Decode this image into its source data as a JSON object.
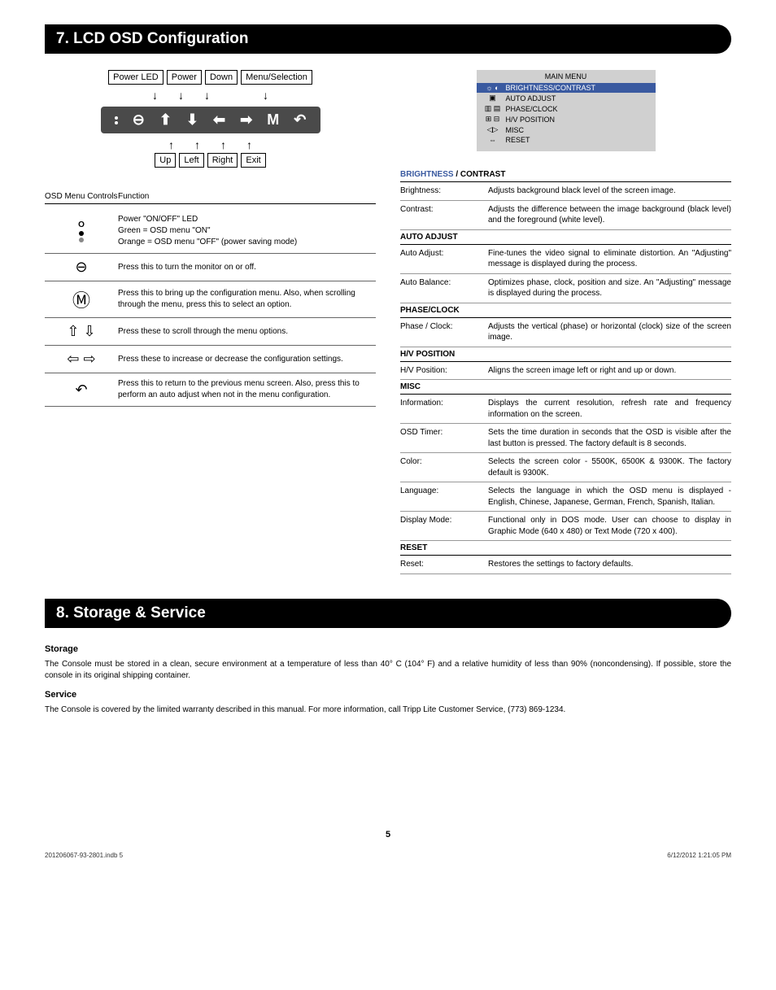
{
  "section7": {
    "title": "7. LCD OSD Configuration",
    "diagram": {
      "top_labels": [
        "Power LED",
        "Power",
        "Down",
        "Menu/Selection"
      ],
      "bottom_labels": [
        "Up",
        "Left",
        "Right",
        "Exit"
      ]
    },
    "osd_preview": {
      "title": "MAIN MENU",
      "items": [
        {
          "label": "BRIGHTNESS/CONTRAST",
          "selected": true
        },
        {
          "label": "AUTO ADJUST",
          "selected": false
        },
        {
          "label": "PHASE/CLOCK",
          "selected": false
        },
        {
          "label": "H/V POSITION",
          "selected": false
        },
        {
          "label": "MISC",
          "selected": false
        },
        {
          "label": "RESET",
          "selected": false
        }
      ]
    },
    "controls_table": {
      "head1": "OSD Menu Controls",
      "head2": "Function",
      "rows": [
        {
          "func": "Power \"ON/OFF\" LED\nGreen = OSD menu \"ON\"\nOrange = OSD menu \"OFF\" (power saving mode)"
        },
        {
          "func": "Press this to turn the monitor on or off."
        },
        {
          "func": "Press this to bring up the configuration menu. Also, when scrolling through the menu, press this to select an option."
        },
        {
          "func": "Press these to scroll through the menu options."
        },
        {
          "func": "Press these to increase or decrease the configuration settings."
        },
        {
          "func": "Press this to return to the previous menu screen. Also, press this to perform an auto adjust when not in the menu configuration."
        }
      ]
    },
    "settings": {
      "groups": [
        {
          "head_html": true,
          "head_b": "BRIGHTNESS",
          "head_sep": " / ",
          "head_r": "CONTRAST",
          "rows": [
            {
              "k": "Brightness:",
              "v": "Adjusts background black level of the screen image."
            },
            {
              "k": "Contrast:",
              "v": "Adjusts the difference between the image background (black level) and the foreground (white level)."
            }
          ]
        },
        {
          "head": "AUTO ADJUST",
          "rows": [
            {
              "k": "Auto Adjust:",
              "v": "Fine-tunes the video signal to eliminate distortion. An \"Adjusting\" message is displayed during the process."
            },
            {
              "k": "Auto Balance:",
              "v": "Optimizes phase, clock, position and size. An \"Adjusting\" message is displayed during the process."
            }
          ]
        },
        {
          "head": "PHASE/CLOCK",
          "rows": [
            {
              "k": "Phase / Clock:",
              "v": "Adjusts the vertical (phase) or horizontal (clock) size of the screen image."
            }
          ]
        },
        {
          "head": "H/V POSITION",
          "rows": [
            {
              "k": "H/V Position:",
              "v": "Aligns the screen image left or right and up or down."
            }
          ]
        },
        {
          "head": "MISC",
          "rows": [
            {
              "k": "Information:",
              "v": "Displays the current resolution, refresh rate and frequency information on the screen."
            },
            {
              "k": "OSD Timer:",
              "v": "Sets the time duration in seconds that the OSD is visible after the last button is pressed. The factory default is 8 seconds."
            },
            {
              "k": "Color:",
              "v": "Selects the screen color - 5500K, 6500K & 9300K. The factory default is 9300K."
            },
            {
              "k": "Language:",
              "v": "Selects the language in which the OSD menu is displayed - English, Chinese, Japanese, German, French, Spanish, Italian."
            },
            {
              "k": "Display Mode:",
              "v": "Functional only in DOS mode. User can choose to display in Graphic Mode (640 x 480) or Text Mode (720 x 400)."
            }
          ]
        },
        {
          "head": "RESET",
          "rows": [
            {
              "k": "Reset:",
              "v": "Restores the settings to factory defaults."
            }
          ]
        }
      ]
    }
  },
  "section8": {
    "title": "8. Storage & Service",
    "storage_h": "Storage",
    "storage_p": "The Console must be stored in a clean, secure environment at a temperature of less than 40° C (104° F) and a relative humidity of less than 90% (noncondensing). If possible, store the console in its original shipping container.",
    "service_h": "Service",
    "service_p": "The Console is covered by the limited warranty described in this manual. For more information, call Tripp Lite Customer Service, (773) 869-1234."
  },
  "page_num": "5",
  "footer_left": "201206067-93-2801.indb   5",
  "footer_right": "6/12/2012   1:21:05 PM",
  "colors": {
    "accent": "#3a5aa0",
    "panel_bg": "#4a4a4a",
    "osd_bg": "#d0d0d0"
  }
}
